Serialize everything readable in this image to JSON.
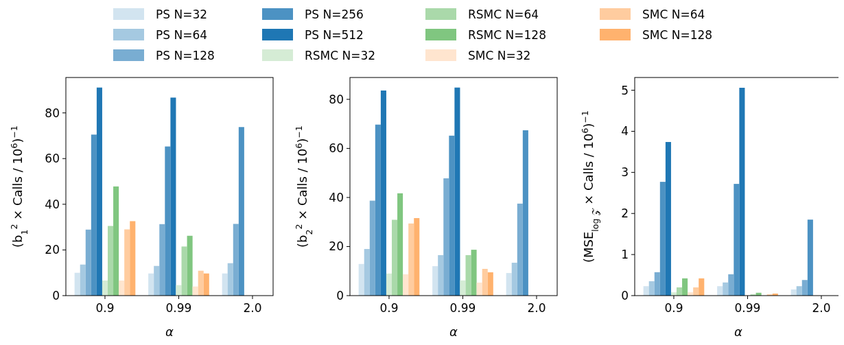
{
  "chart_data": [
    {
      "type": "bar",
      "categories": [
        "0.9",
        "0.99",
        "2.0"
      ],
      "xlabel": "α",
      "ylabel": "(b$_{1}$$^{2}$ × Calls / 10$^{6}$)$^{−1}$",
      "ylim": [
        0,
        95.5
      ],
      "yticks": [
        0,
        20,
        40,
        60,
        80
      ],
      "legend": "top",
      "series": [
        {
          "name": "PS N=32",
          "color": "#d2e4f0",
          "values": [
            10.0,
            9.7,
            9.7
          ]
        },
        {
          "name": "PS N=64",
          "color": "#a5c9e1",
          "values": [
            13.6,
            13.0,
            14.2
          ]
        },
        {
          "name": "PS N=128",
          "color": "#79add2",
          "values": [
            28.9,
            31.3,
            31.4
          ]
        },
        {
          "name": "PS N=256",
          "color": "#4c92c3",
          "values": [
            70.5,
            65.3,
            73.8
          ]
        },
        {
          "name": "PS N=512",
          "color": "#1f77b4",
          "values": [
            91.1,
            86.7,
            null
          ]
        },
        {
          "name": "RSMC N=32",
          "color": "#d5ecd5",
          "values": [
            6.6,
            4.6,
            null
          ]
        },
        {
          "name": "RSMC N=64",
          "color": "#aad9aa",
          "values": [
            30.5,
            21.5,
            null
          ]
        },
        {
          "name": "RSMC N=128",
          "color": "#80c680",
          "values": [
            47.8,
            26.2,
            null
          ]
        },
        {
          "name": "SMC N=32",
          "color": "#ffe5cf",
          "values": [
            6.6,
            4.0,
            null
          ]
        },
        {
          "name": "SMC N=64",
          "color": "#ffcc9f",
          "values": [
            29.0,
            10.9,
            null
          ]
        },
        {
          "name": "SMC N=128",
          "color": "#ffb26e",
          "values": [
            32.6,
            9.7,
            null
          ]
        }
      ]
    },
    {
      "type": "bar",
      "categories": [
        "0.9",
        "0.99",
        "2.0"
      ],
      "xlabel": "α",
      "ylabel": "(b$_{2}$$^{2}$ × Calls / 10$^{6}$)$^{−1}$",
      "ylim": [
        0,
        88.9
      ],
      "yticks": [
        0,
        20,
        40,
        60,
        80
      ],
      "series": [
        {
          "color": "#d2e4f0",
          "values": [
            12.9,
            12.0,
            9.2
          ]
        },
        {
          "color": "#a5c9e1",
          "values": [
            19.0,
            16.5,
            13.4
          ]
        },
        {
          "color": "#79add2",
          "values": [
            38.7,
            47.8,
            37.5
          ]
        },
        {
          "color": "#4c92c3",
          "values": [
            69.7,
            65.2,
            67.4
          ]
        },
        {
          "color": "#1f77b4",
          "values": [
            83.6,
            84.8,
            null
          ]
        },
        {
          "color": "#d5ecd5",
          "values": [
            9.0,
            6.2,
            null
          ]
        },
        {
          "color": "#aad9aa",
          "values": [
            30.9,
            16.5,
            null
          ]
        },
        {
          "color": "#80c680",
          "values": [
            41.7,
            18.7,
            null
          ]
        },
        {
          "color": "#ffe5cf",
          "values": [
            8.7,
            5.3,
            null
          ]
        },
        {
          "color": "#ffcc9f",
          "values": [
            29.4,
            10.9,
            null
          ]
        },
        {
          "color": "#ffb26e",
          "values": [
            31.6,
            9.5,
            null
          ]
        }
      ]
    },
    {
      "type": "bar",
      "categories": [
        "0.9",
        "0.99",
        "2.0"
      ],
      "xlabel": "α",
      "ylabel": "(MSE$_{log 𝒵}$ × Calls / 10$^{6}$)$^{−1}$",
      "ylim": [
        0,
        5.31
      ],
      "yticks": [
        0,
        1,
        2,
        3,
        4,
        5
      ],
      "series": [
        {
          "color": "#d2e4f0",
          "values": [
            0.23,
            0.23,
            0.15
          ]
        },
        {
          "color": "#a5c9e1",
          "values": [
            0.35,
            0.32,
            0.23
          ]
        },
        {
          "color": "#79add2",
          "values": [
            0.57,
            0.52,
            0.38
          ]
        },
        {
          "color": "#4c92c3",
          "values": [
            2.77,
            2.72,
            1.85
          ]
        },
        {
          "color": "#1f77b4",
          "values": [
            3.74,
            5.06,
            null
          ]
        },
        {
          "color": "#d5ecd5",
          "values": [
            0.08,
            null,
            null
          ]
        },
        {
          "color": "#aad9aa",
          "values": [
            0.2,
            0.03,
            null
          ]
        },
        {
          "color": "#80c680",
          "values": [
            0.42,
            0.07,
            null
          ]
        },
        {
          "color": "#ffe5cf",
          "values": [
            0.08,
            null,
            null
          ]
        },
        {
          "color": "#ffcc9f",
          "values": [
            0.2,
            0.03,
            null
          ]
        },
        {
          "color": "#ffb26e",
          "values": [
            0.42,
            0.05,
            null
          ]
        }
      ]
    }
  ]
}
